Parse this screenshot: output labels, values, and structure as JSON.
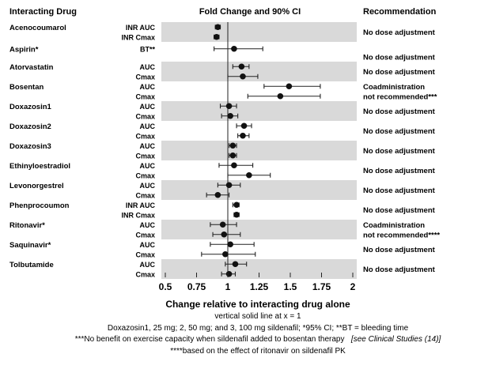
{
  "chart_data": {
    "type": "forest",
    "title": "Fold Change and 90% CI",
    "column_headers": {
      "drug": "Interacting Drug",
      "recommendation": "Recommendation"
    },
    "xlabel": "Change relative to interacting drug alone",
    "xlim": [
      0.5,
      2
    ],
    "xticks": [
      0.5,
      0.75,
      1,
      1.25,
      1.5,
      1.75,
      2
    ],
    "xtick_labels": [
      "0.5",
      "0.75",
      "1",
      "1.25",
      "1.5",
      "1.75",
      "2"
    ],
    "reference_line_x": 1,
    "footnotes": [
      "vertical solid line at x = 1",
      "Doxazosin1, 25 mg; 2, 50 mg; and 3, 100 mg sildenafil; *95% CI; **BT = bleeding time",
      "***No benefit on exercise capacity when sildenafil added to bosentan therapy",
      "[see Clinical Studies (14)]",
      "****based on the effect of ritonavir on sildenafil PK"
    ],
    "groups": [
      {
        "drug": "Acenocoumarol",
        "recommendation": [
          "No dose adjustment"
        ],
        "shaded": true,
        "rows": [
          {
            "param": "INR AUC",
            "est": 0.92,
            "lo": 0.9,
            "hi": 0.94
          },
          {
            "param": "INR Cmax",
            "est": 0.91,
            "lo": 0.89,
            "hi": 0.93
          }
        ]
      },
      {
        "drug": "Aspirin*",
        "recommendation": [
          "No dose adjustment"
        ],
        "shaded": false,
        "rows": [
          {
            "param": "BT**",
            "est": 1.05,
            "lo": 0.89,
            "hi": 1.28
          }
        ]
      },
      {
        "drug": "Atorvastatin",
        "recommendation": [
          "No dose adjustment"
        ],
        "shaded": true,
        "rows": [
          {
            "param": "AUC",
            "est": 1.11,
            "lo": 1.04,
            "hi": 1.17
          },
          {
            "param": "Cmax",
            "est": 1.12,
            "lo": 1.0,
            "hi": 1.24
          }
        ]
      },
      {
        "drug": "Bosentan",
        "recommendation": [
          "Coadministration",
          "not recommended***"
        ],
        "shaded": false,
        "rows": [
          {
            "param": "AUC",
            "est": 1.49,
            "lo": 1.29,
            "hi": 1.74
          },
          {
            "param": "Cmax",
            "est": 1.42,
            "lo": 1.16,
            "hi": 1.74
          }
        ]
      },
      {
        "drug": "Doxazosin1",
        "recommendation": [
          "No dose adjustment"
        ],
        "shaded": true,
        "rows": [
          {
            "param": "AUC",
            "est": 1.01,
            "lo": 0.94,
            "hi": 1.07
          },
          {
            "param": "Cmax",
            "est": 1.02,
            "lo": 0.95,
            "hi": 1.08
          }
        ]
      },
      {
        "drug": "Doxazosin2",
        "recommendation": [
          "No dose adjustment"
        ],
        "shaded": false,
        "rows": [
          {
            "param": "AUC",
            "est": 1.13,
            "lo": 1.07,
            "hi": 1.19
          },
          {
            "param": "Cmax",
            "est": 1.12,
            "lo": 1.08,
            "hi": 1.17
          }
        ]
      },
      {
        "drug": "Doxazosin3",
        "recommendation": [
          "No dose adjustment"
        ],
        "shaded": true,
        "rows": [
          {
            "param": "AUC",
            "est": 1.04,
            "lo": 1.01,
            "hi": 1.07
          },
          {
            "param": "Cmax",
            "est": 1.04,
            "lo": 1.01,
            "hi": 1.07
          }
        ]
      },
      {
        "drug": "Ethinyloestradiol",
        "recommendation": [
          "No dose adjustment"
        ],
        "shaded": false,
        "rows": [
          {
            "param": "AUC",
            "est": 1.05,
            "lo": 0.93,
            "hi": 1.2
          },
          {
            "param": "Cmax",
            "est": 1.17,
            "lo": 1.0,
            "hi": 1.34
          }
        ]
      },
      {
        "drug": "Levonorgestrel",
        "recommendation": [
          "No dose adjustment"
        ],
        "shaded": true,
        "rows": [
          {
            "param": "AUC",
            "est": 1.01,
            "lo": 0.92,
            "hi": 1.1
          },
          {
            "param": "Cmax",
            "est": 0.92,
            "lo": 0.83,
            "hi": 1.01
          }
        ]
      },
      {
        "drug": "Phenprocoumon",
        "recommendation": [
          "No dose adjustment"
        ],
        "shaded": false,
        "rows": [
          {
            "param": "INR AUC",
            "est": 1.07,
            "lo": 1.04,
            "hi": 1.09
          },
          {
            "param": "INR Cmax",
            "est": 1.07,
            "lo": 1.05,
            "hi": 1.09
          }
        ]
      },
      {
        "drug": "Ritonavir*",
        "recommendation": [
          "Coadministration",
          "not recommended****"
        ],
        "shaded": true,
        "rows": [
          {
            "param": "AUC",
            "est": 0.96,
            "lo": 0.86,
            "hi": 1.07
          },
          {
            "param": "Cmax",
            "est": 0.97,
            "lo": 0.88,
            "hi": 1.1
          }
        ]
      },
      {
        "drug": "Saquinavir*",
        "recommendation": [
          "No dose adjustment"
        ],
        "shaded": false,
        "rows": [
          {
            "param": "AUC",
            "est": 1.02,
            "lo": 0.86,
            "hi": 1.21
          },
          {
            "param": "Cmax",
            "est": 0.98,
            "lo": 0.79,
            "hi": 1.22
          }
        ]
      },
      {
        "drug": "Tolbutamide",
        "recommendation": [
          "No dose adjustment"
        ],
        "shaded": true,
        "rows": [
          {
            "param": "AUC",
            "est": 1.06,
            "lo": 0.98,
            "hi": 1.15
          },
          {
            "param": "Cmax",
            "est": 1.01,
            "lo": 0.95,
            "hi": 1.06
          }
        ]
      }
    ]
  }
}
